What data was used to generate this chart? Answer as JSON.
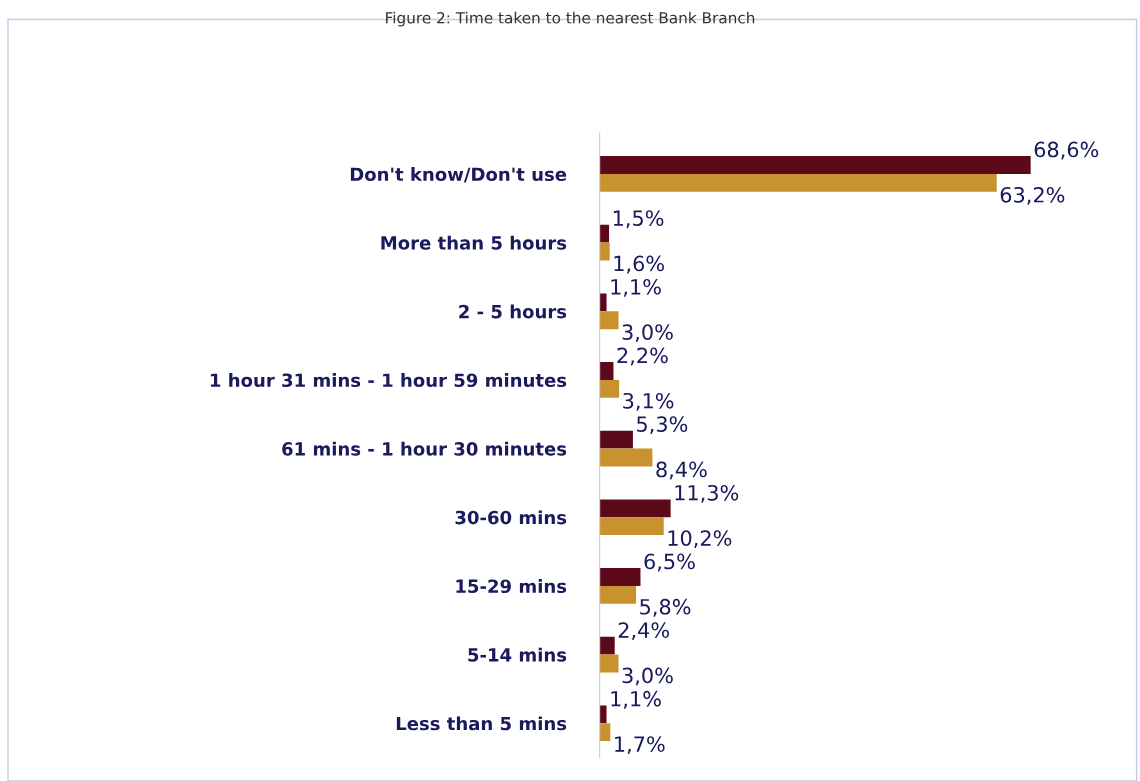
{
  "chart_data": {
    "type": "bar",
    "orientation": "horizontal",
    "title": "Figure 2: Time taken to the nearest Bank Branch",
    "categories": [
      "Don't know/Don't use",
      "More than 5 hours",
      "2 - 5 hours",
      "1 hour 31 mins - 1 hour 59 minutes",
      "61 mins - 1 hour 30 minutes",
      "30-60 mins",
      "15-29 mins",
      "5-14 mins",
      "Less than 5 mins"
    ],
    "series": [
      {
        "color": "#5c0a1a",
        "values": [
          68.6,
          1.5,
          1.1,
          2.2,
          5.3,
          11.3,
          6.5,
          2.4,
          1.1
        ],
        "value_labels": [
          "68,6%",
          "1,5%",
          "1,1%",
          "2,2%",
          "5,3%",
          "11,3%",
          "6,5%",
          "2,4%",
          "1,1%"
        ]
      },
      {
        "color": "#c8922e",
        "values": [
          63.2,
          1.6,
          3.0,
          3.1,
          8.4,
          10.2,
          5.8,
          3.0,
          1.7
        ],
        "value_labels": [
          "63,2%",
          "1,6%",
          "3,0%",
          "3,1%",
          "8,4%",
          "10,2%",
          "5,8%",
          "3,0%",
          "1,7%"
        ]
      }
    ],
    "xlim": [
      0,
      86
    ],
    "tick_labels": "y",
    "grid": false,
    "legend": false
  }
}
